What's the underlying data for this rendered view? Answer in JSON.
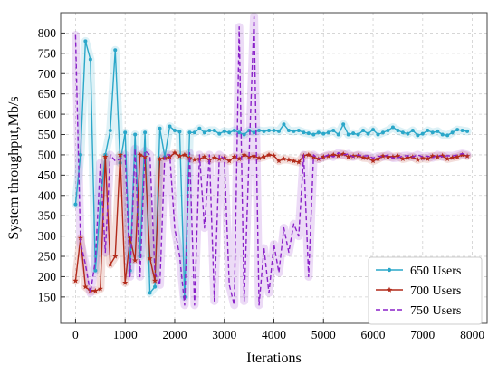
{
  "chart_data": {
    "type": "line",
    "xlabel": "Iterations",
    "ylabel": "System throughput,Mb/s",
    "xlim": [
      -300,
      8300
    ],
    "ylim": [
      85,
      850
    ],
    "x_ticks": [
      0,
      1000,
      2000,
      3000,
      4000,
      5000,
      6000,
      7000,
      8000
    ],
    "y_ticks": [
      150,
      200,
      250,
      300,
      350,
      400,
      450,
      500,
      550,
      600,
      650,
      700,
      750,
      800
    ],
    "grid": true,
    "legend_position": "lower-right",
    "series": [
      {
        "name": "650 Users",
        "color": "#2aa7c9",
        "marker": "circle",
        "dash": "solid",
        "x": [
          0,
          100,
          200,
          300,
          400,
          500,
          600,
          700,
          800,
          900,
          1000,
          1100,
          1200,
          1300,
          1400,
          1500,
          1600,
          1700,
          1800,
          1900,
          2000,
          2100,
          2200,
          2300,
          2400,
          2500,
          2600,
          2700,
          2800,
          2900,
          3000,
          3100,
          3200,
          3300,
          3400,
          3500,
          3600,
          3700,
          3800,
          3900,
          4000,
          4100,
          4200,
          4300,
          4400,
          4500,
          4600,
          4700,
          4800,
          4900,
          5000,
          5100,
          5200,
          5300,
          5400,
          5500,
          5600,
          5700,
          5800,
          5900,
          6000,
          6100,
          6200,
          6300,
          6400,
          6500,
          6600,
          6700,
          6800,
          6900,
          7000,
          7100,
          7200,
          7300,
          7400,
          7500,
          7600,
          7700,
          7800,
          7900
        ],
        "y": [
          378,
          500,
          780,
          735,
          215,
          380,
          500,
          560,
          758,
          480,
          555,
          215,
          550,
          250,
          555,
          160,
          175,
          565,
          495,
          570,
          560,
          557,
          150,
          555,
          555,
          565,
          555,
          560,
          560,
          552,
          558,
          555,
          560,
          555,
          550,
          560,
          555,
          560,
          558,
          560,
          560,
          558,
          575,
          560,
          558,
          560,
          555,
          553,
          550,
          555,
          552,
          555,
          560,
          550,
          575,
          550,
          553,
          550,
          560,
          552,
          562,
          550,
          555,
          560,
          568,
          560,
          555,
          552,
          560,
          548,
          552,
          560,
          555,
          558,
          550,
          548,
          555,
          562,
          560,
          558
        ]
      },
      {
        "name": "700 Users",
        "color": "#b22a1a",
        "marker": "star",
        "dash": "solid",
        "x": [
          0,
          100,
          200,
          300,
          400,
          500,
          600,
          700,
          800,
          900,
          1000,
          1100,
          1200,
          1300,
          1400,
          1500,
          1600,
          1700,
          1800,
          1900,
          2000,
          2100,
          2200,
          2300,
          2400,
          2500,
          2600,
          2700,
          2800,
          2900,
          3000,
          3100,
          3200,
          3300,
          3400,
          3500,
          3600,
          3700,
          3800,
          3900,
          4000,
          4100,
          4200,
          4300,
          4400,
          4500,
          4600,
          4700,
          4800,
          4900,
          5000,
          5100,
          5200,
          5300,
          5400,
          5500,
          5600,
          5700,
          5800,
          5900,
          6000,
          6100,
          6200,
          6300,
          6400,
          6500,
          6600,
          6700,
          6800,
          6900,
          7000,
          7100,
          7200,
          7300,
          7400,
          7500,
          7600,
          7700,
          7800,
          7900
        ],
        "y": [
          190,
          295,
          175,
          165,
          165,
          170,
          495,
          230,
          250,
          500,
          185,
          295,
          240,
          500,
          495,
          245,
          190,
          490,
          492,
          495,
          505,
          497,
          500,
          492,
          488,
          490,
          495,
          487,
          493,
          490,
          492,
          485,
          495,
          490,
          500,
          495,
          497,
          492,
          495,
          500,
          498,
          485,
          490,
          488,
          485,
          482,
          498,
          500,
          495,
          490,
          495,
          497,
          500,
          498,
          502,
          495,
          497,
          498,
          493,
          492,
          485,
          490,
          497,
          495,
          495,
          497,
          490,
          493,
          495,
          488,
          492,
          490,
          497,
          495,
          498,
          490,
          493,
          495,
          500,
          497
        ]
      },
      {
        "name": "750 Users",
        "color": "#8a21c9",
        "marker": "none",
        "dash": "dashed",
        "x": [
          0,
          100,
          200,
          300,
          400,
          500,
          600,
          700,
          800,
          900,
          1000,
          1100,
          1200,
          1300,
          1400,
          1500,
          1600,
          1700,
          1800,
          1900,
          2000,
          2100,
          2200,
          2300,
          2400,
          2500,
          2600,
          2700,
          2800,
          2900,
          3000,
          3100,
          3200,
          3300,
          3400,
          3500,
          3600,
          3700,
          3800,
          3900,
          4000,
          4100,
          4200,
          4300,
          4400,
          4500,
          4600,
          4700,
          4800,
          4900,
          5000,
          5100,
          5200,
          5300,
          5400,
          5500,
          5600,
          5700,
          5800,
          5900,
          6000,
          6100,
          6200,
          6300,
          6400,
          6500,
          6600,
          6700,
          6800,
          6900,
          7000,
          7100,
          7200,
          7300,
          7400,
          7500,
          7600,
          7700,
          7800,
          7900
        ],
        "y": [
          795,
          285,
          230,
          160,
          240,
          480,
          260,
          500,
          485,
          490,
          500,
          200,
          515,
          200,
          510,
          500,
          210,
          180,
          500,
          500,
          320,
          250,
          130,
          505,
          130,
          500,
          320,
          500,
          140,
          500,
          490,
          180,
          130,
          815,
          140,
          500,
          840,
          130,
          270,
          160,
          280,
          210,
          320,
          260,
          330,
          300,
          500,
          200,
          500,
          490,
          495,
          500,
          495,
          505,
          500,
          502,
          495,
          500,
          497,
          498,
          492,
          497,
          495,
          500,
          492,
          493,
          497,
          498,
          495,
          500,
          495,
          497,
          493,
          500,
          495,
          498,
          497,
          500,
          503,
          500
        ]
      }
    ]
  }
}
